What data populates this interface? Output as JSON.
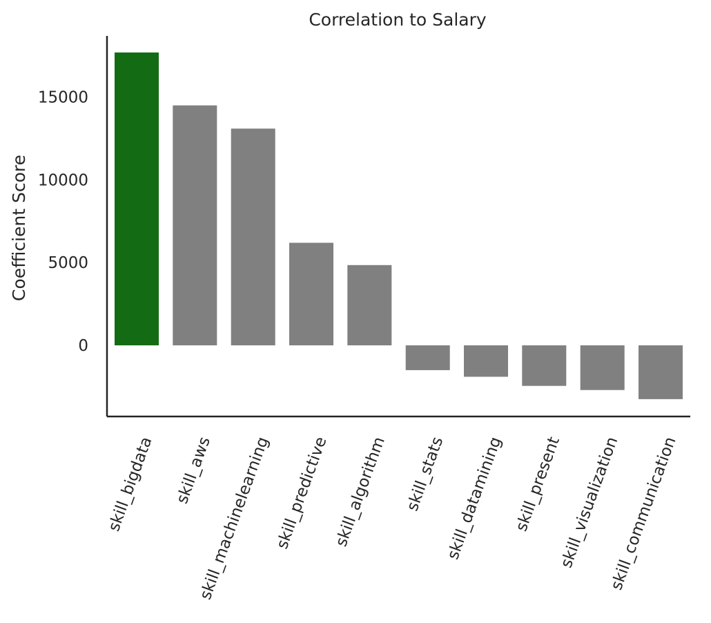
{
  "chart_data": {
    "type": "bar",
    "title": "Correlation to Salary",
    "xlabel": "",
    "ylabel": "Coefficient Score",
    "categories": [
      "skill_bigdata",
      "skill_aws",
      "skill_machinelearning",
      "skill_predictive",
      "skill_algorithm",
      "skill_stats",
      "skill_datamining",
      "skill_present",
      "skill_visualization",
      "skill_communication"
    ],
    "values": [
      17700,
      14500,
      13100,
      6200,
      4850,
      -1500,
      -1900,
      -2450,
      -2700,
      -3250
    ],
    "ylim": [
      -4300,
      18700
    ],
    "yticks": [
      0,
      5000,
      10000,
      15000
    ],
    "ytick_labels": [
      "0",
      "5000",
      "10000",
      "15000"
    ],
    "colors": {
      "highlight": "#136c13",
      "default": "#808080"
    },
    "highlight_index": 0,
    "grid": false,
    "legend": "none"
  }
}
